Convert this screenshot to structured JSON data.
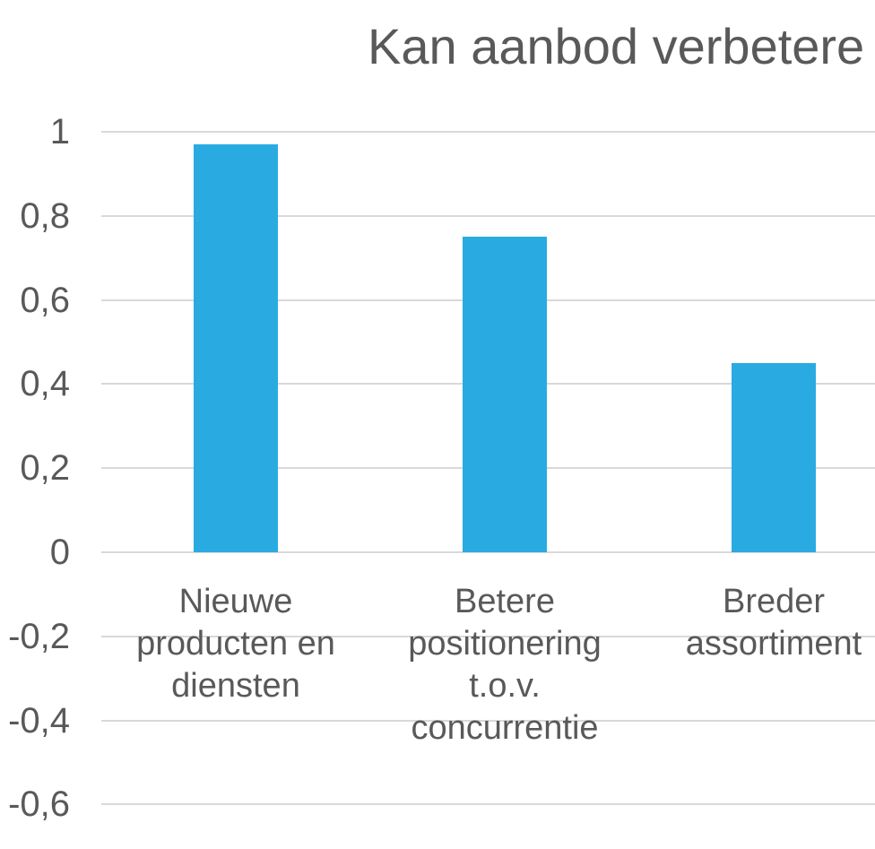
{
  "chart_data": {
    "type": "bar",
    "title": "Kan aanbod verbetere",
    "categories": [
      "Nieuwe producten en diensten",
      "Betere positionering t.o.v. concurrentie",
      "Breder assortiment"
    ],
    "category_label_lines": [
      "Nieuwe\nproducten en\ndiensten",
      "Betere\npositionering\nt.o.v.\nconcurrentie",
      "Breder\nassortiment"
    ],
    "values": [
      0.97,
      0.75,
      0.45
    ],
    "yticks": [
      {
        "value": 1,
        "label": "1"
      },
      {
        "value": 0.8,
        "label": "0,8"
      },
      {
        "value": 0.6,
        "label": "0,6"
      },
      {
        "value": 0.4,
        "label": "0,4"
      },
      {
        "value": 0.2,
        "label": "0,2"
      },
      {
        "value": 0,
        "label": "0"
      },
      {
        "value": -0.2,
        "label": "-0,2"
      },
      {
        "value": -0.4,
        "label": "-0,4"
      },
      {
        "value": -0.6,
        "label": "-0,6"
      }
    ],
    "ylim": [
      -0.6,
      1
    ],
    "xlabel": "",
    "ylabel": "",
    "grid": true,
    "legend": "none",
    "colors": {
      "bar": "#29ABE2",
      "gridline": "#D9D9D9",
      "text": "#595959"
    }
  }
}
